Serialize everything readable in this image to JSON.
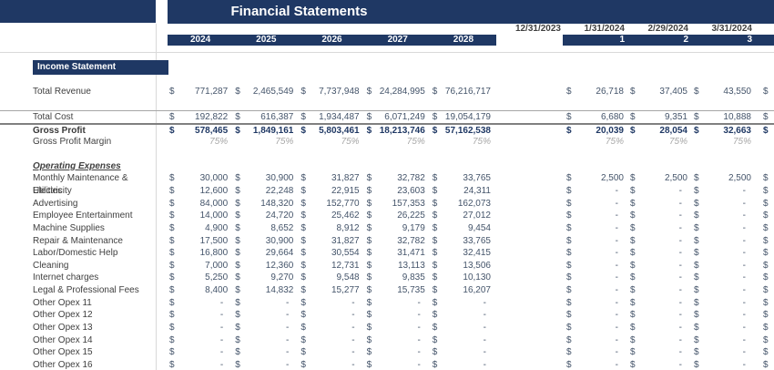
{
  "title": "Financial Statements",
  "section_header": "Income Statement",
  "currency_symbol": "$",
  "colors": {
    "navy": "#1F3864",
    "label_text": "#404040",
    "value_text": "#44546A",
    "muted": "#A6A6A6",
    "gridline": "#D9D9D9"
  },
  "header": {
    "dates": [
      "12/31/2023",
      "1/31/2024",
      "2/29/2024",
      "3/31/2024"
    ],
    "years": [
      "2024",
      "2025",
      "2026",
      "2027",
      "2028"
    ],
    "period_numbers": [
      "1",
      "2",
      "3"
    ]
  },
  "rows": [
    {
      "label": "Total Revenue",
      "kind": "value",
      "dollar": true,
      "years": [
        "771,287",
        "2,465,549",
        "7,737,948",
        "24,284,995",
        "76,216,717"
      ],
      "months": [
        "26,718",
        "37,405",
        "43,550"
      ]
    },
    {
      "kind": "blank"
    },
    {
      "label": "Total Cost",
      "kind": "value",
      "dollar": true,
      "border": "thin",
      "years": [
        "192,822",
        "616,387",
        "1,934,487",
        "6,071,249",
        "19,054,179"
      ],
      "months": [
        "6,680",
        "9,351",
        "10,888"
      ]
    },
    {
      "label": "Gross Profit",
      "kind": "value",
      "bold": true,
      "dollar": true,
      "border": "thick",
      "years": [
        "578,465",
        "1,849,161",
        "5,803,461",
        "18,213,746",
        "57,162,538"
      ],
      "months": [
        "20,039",
        "28,054",
        "32,663"
      ]
    },
    {
      "label": "Gross Profit Margin",
      "kind": "margin",
      "dollar": false,
      "years": [
        "75%",
        "75%",
        "75%",
        "75%",
        "75%"
      ],
      "months": [
        "75%",
        "75%",
        "75%"
      ]
    },
    {
      "kind": "blank"
    },
    {
      "label": "Operating Expenses",
      "kind": "subheader"
    },
    {
      "label": "Monthly Maintenance & Utilities",
      "kind": "value",
      "dollar": true,
      "years": [
        "30,000",
        "30,900",
        "31,827",
        "32,782",
        "33,765"
      ],
      "months": [
        "2,500",
        "2,500",
        "2,500"
      ]
    },
    {
      "label": "Electricity",
      "kind": "value",
      "dollar": true,
      "years": [
        "12,600",
        "22,248",
        "22,915",
        "23,603",
        "24,311"
      ],
      "months": [
        "-",
        "-",
        "-"
      ]
    },
    {
      "label": "Advertising",
      "kind": "value",
      "dollar": true,
      "years": [
        "84,000",
        "148,320",
        "152,770",
        "157,353",
        "162,073"
      ],
      "months": [
        "-",
        "-",
        "-"
      ]
    },
    {
      "label": "Employee Entertainment",
      "kind": "value",
      "dollar": true,
      "years": [
        "14,000",
        "24,720",
        "25,462",
        "26,225",
        "27,012"
      ],
      "months": [
        "-",
        "-",
        "-"
      ]
    },
    {
      "label": "Machine Supplies",
      "kind": "value",
      "dollar": true,
      "years": [
        "4,900",
        "8,652",
        "8,912",
        "9,179",
        "9,454"
      ],
      "months": [
        "-",
        "-",
        "-"
      ]
    },
    {
      "label": "Repair & Maintenance",
      "kind": "value",
      "dollar": true,
      "years": [
        "17,500",
        "30,900",
        "31,827",
        "32,782",
        "33,765"
      ],
      "months": [
        "-",
        "-",
        "-"
      ]
    },
    {
      "label": "Labor/Domestic Help",
      "kind": "value",
      "dollar": true,
      "years": [
        "16,800",
        "29,664",
        "30,554",
        "31,471",
        "32,415"
      ],
      "months": [
        "-",
        "-",
        "-"
      ]
    },
    {
      "label": "Cleaning",
      "kind": "value",
      "dollar": true,
      "years": [
        "7,000",
        "12,360",
        "12,731",
        "13,113",
        "13,506"
      ],
      "months": [
        "-",
        "-",
        "-"
      ]
    },
    {
      "label": "Internet charges",
      "kind": "value",
      "dollar": true,
      "years": [
        "5,250",
        "9,270",
        "9,548",
        "9,835",
        "10,130"
      ],
      "months": [
        "-",
        "-",
        "-"
      ]
    },
    {
      "label": "Legal & Professional Fees",
      "kind": "value",
      "dollar": true,
      "years": [
        "8,400",
        "14,832",
        "15,277",
        "15,735",
        "16,207"
      ],
      "months": [
        "-",
        "-",
        "-"
      ]
    },
    {
      "label": "Other Opex 11",
      "kind": "value",
      "dollar": true,
      "years": [
        "-",
        "-",
        "-",
        "-",
        "-"
      ],
      "months": [
        "-",
        "-",
        "-"
      ]
    },
    {
      "label": "Other Opex 12",
      "kind": "value",
      "dollar": true,
      "years": [
        "-",
        "-",
        "-",
        "-",
        "-"
      ],
      "months": [
        "-",
        "-",
        "-"
      ]
    },
    {
      "label": "Other Opex 13",
      "kind": "value",
      "dollar": true,
      "years": [
        "-",
        "-",
        "-",
        "-",
        "-"
      ],
      "months": [
        "-",
        "-",
        "-"
      ]
    },
    {
      "label": "Other Opex 14",
      "kind": "value",
      "dollar": true,
      "years": [
        "-",
        "-",
        "-",
        "-",
        "-"
      ],
      "months": [
        "-",
        "-",
        "-"
      ]
    },
    {
      "label": "Other Opex 15",
      "kind": "value",
      "dollar": true,
      "years": [
        "-",
        "-",
        "-",
        "-",
        "-"
      ],
      "months": [
        "-",
        "-",
        "-"
      ]
    },
    {
      "label": "Other Opex 16",
      "kind": "value",
      "dollar": true,
      "years": [
        "-",
        "-",
        "-",
        "-",
        "-"
      ],
      "months": [
        "-",
        "-",
        "-"
      ]
    }
  ]
}
